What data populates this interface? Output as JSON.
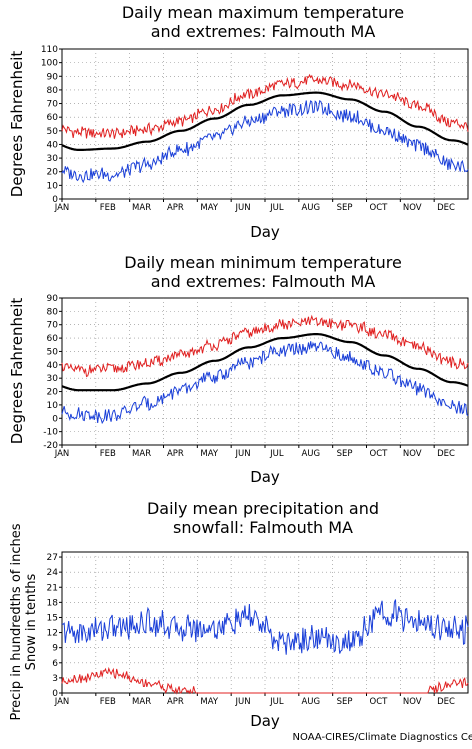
{
  "colors": {
    "max_line": "#e02020",
    "min_line": "#1a3fd8",
    "mean_line": "#000000",
    "precip_line": "#1a3fd8",
    "snow_line": "#e02020",
    "grid": "#888888"
  },
  "credit": "NOAA-CIRES/Climate Diagnostics Ce",
  "chart_data": [
    {
      "type": "line",
      "title": "Daily mean maximum temperature\nand extremes: Falmouth MA",
      "xlabel": "Day",
      "ylabel": "Degrees Fahrenheit",
      "ylim": [
        0,
        110
      ],
      "yticks": [
        0,
        10,
        20,
        30,
        40,
        50,
        60,
        70,
        80,
        90,
        100,
        110
      ],
      "categories": [
        "JAN",
        "FEB",
        "MAR",
        "APR",
        "MAY",
        "JUN",
        "JUL",
        "AUG",
        "SEP",
        "OCT",
        "NOV",
        "DEC"
      ],
      "grid": true,
      "series": [
        {
          "role": "upper",
          "values": [
            49,
            48,
            51,
            57,
            66,
            77,
            84,
            87,
            84,
            77,
            68,
            56
          ]
        },
        {
          "role": "mean",
          "values": [
            36,
            37,
            42,
            50,
            59,
            69,
            76,
            78,
            73,
            64,
            53,
            43
          ]
        },
        {
          "role": "lower",
          "values": [
            18,
            18,
            25,
            36,
            45,
            57,
            65,
            67,
            61,
            50,
            39,
            25
          ]
        }
      ]
    },
    {
      "type": "line",
      "title": "Daily mean minimum temperature\nand extremes: Falmouth MA",
      "xlabel": "Day",
      "ylabel": "Degrees Fahrenheit",
      "ylim": [
        -20,
        90
      ],
      "yticks": [
        -20,
        -10,
        0,
        10,
        20,
        30,
        40,
        50,
        60,
        70,
        80,
        90
      ],
      "categories": [
        "JAN",
        "FEB",
        "MAR",
        "APR",
        "MAY",
        "JUN",
        "JUL",
        "AUG",
        "SEP",
        "OCT",
        "NOV",
        "DEC"
      ],
      "grid": true,
      "series": [
        {
          "role": "upper",
          "values": [
            36,
            37,
            41,
            47,
            55,
            64,
            70,
            72,
            70,
            62,
            53,
            42
          ]
        },
        {
          "role": "mean",
          "values": [
            21,
            21,
            26,
            34,
            43,
            53,
            60,
            63,
            57,
            47,
            37,
            27
          ]
        },
        {
          "role": "lower",
          "values": [
            3,
            2,
            11,
            21,
            31,
            42,
            51,
            53,
            45,
            33,
            22,
            8
          ]
        }
      ]
    },
    {
      "type": "line",
      "title": "Daily mean precipitation and\nsnowfall: Falmouth MA",
      "xlabel": "Day",
      "ylabel": "Precip in hundredths of inches\nSnow in tenths",
      "ylim": [
        0,
        28
      ],
      "yticks": [
        0,
        3,
        6,
        9,
        12,
        15,
        18,
        21,
        24,
        27
      ],
      "categories": [
        "JAN",
        "FEB",
        "MAR",
        "APR",
        "MAY",
        "JUN",
        "JUL",
        "AUG",
        "SEP",
        "OCT",
        "NOV",
        "DEC"
      ],
      "grid": true,
      "series": [
        {
          "role": "precip",
          "values": [
            12,
            13,
            14,
            13,
            13,
            15,
            10,
            11,
            10,
            16,
            14,
            13
          ]
        },
        {
          "role": "snow",
          "values": [
            3,
            4,
            2,
            0.5,
            0,
            0,
            0,
            0,
            0,
            0,
            0,
            1.5
          ]
        }
      ]
    }
  ]
}
